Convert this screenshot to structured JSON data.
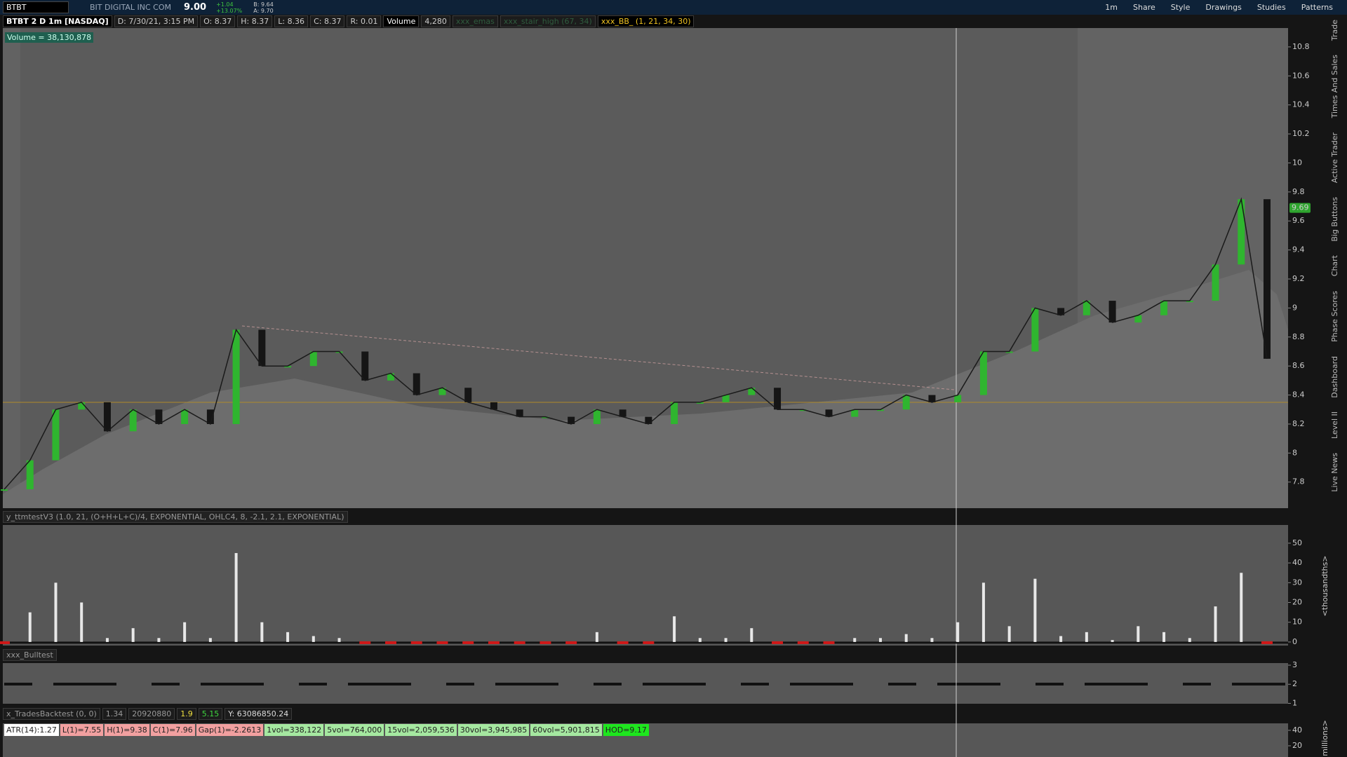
{
  "toolbar": {
    "symbol": "BTBT",
    "description": "BIT DIGITAL INC COM",
    "last": "9.00",
    "change": "+1.04",
    "change_pct": "+13.07%",
    "bid": "B: 9.64",
    "ask": "A: 9.70",
    "timeframe": "1m",
    "buttons": [
      "Share",
      "Style",
      "Drawings",
      "Studies",
      "Patterns"
    ]
  },
  "header": {
    "title": "BTBT 2 D 1m [NASDAQ]",
    "fields": [
      "D: 7/30/21, 3:15 PM",
      "O: 8.37",
      "H: 8.37",
      "L: 8.36",
      "C: 8.37",
      "R: 0.01"
    ],
    "volume_label": "Volume",
    "volume_value": "4,280",
    "studies": [
      "xxx_emas",
      "xxx_stair_high (67, 34)",
      "xxx_BB_ (1, 21, 34, 30)"
    ]
  },
  "volume_note": "Volume = 38,130,878",
  "price_panel": {
    "ylim": [
      7.62,
      10.93
    ],
    "yticks": [
      7.8,
      8,
      8.2,
      8.4,
      8.6,
      8.8,
      9,
      9.2,
      9.4,
      9.6,
      9.8,
      10,
      10.2,
      10.4,
      10.6,
      10.8
    ],
    "last_price": 9.69,
    "closes": [
      7.75,
      7.95,
      8.3,
      8.35,
      8.15,
      8.3,
      8.2,
      8.3,
      8.2,
      8.85,
      8.6,
      8.6,
      8.7,
      8.7,
      8.5,
      8.55,
      8.4,
      8.45,
      8.35,
      8.3,
      8.25,
      8.25,
      8.2,
      8.3,
      8.25,
      8.2,
      8.35,
      8.35,
      8.4,
      8.45,
      8.3,
      8.3,
      8.25,
      8.3,
      8.3,
      8.4,
      8.35,
      8.4,
      8.7,
      8.7,
      9.0,
      8.95,
      9.05,
      8.9,
      8.95,
      9.05,
      9.05,
      9.3,
      9.75,
      8.65
    ]
  },
  "osc_panel": {
    "label": "y_ttmtestV3 (1.0, 21, (O+H+L+C)/4, EXPONENTIAL, OHLC4, 8, -2.1, 2.1, EXPONENTIAL)",
    "unit_label": "<thousandths>",
    "ylim": [
      -1.8,
      59.2
    ],
    "yticks": [
      0,
      10,
      20,
      30,
      40,
      50
    ],
    "values": [
      0,
      15,
      30,
      20,
      2,
      7,
      2,
      10,
      2,
      45,
      10,
      5,
      3,
      2,
      0,
      0,
      0,
      0,
      0,
      0,
      0,
      0,
      0,
      5,
      0,
      0,
      13,
      2,
      2,
      7,
      0,
      0,
      0,
      2,
      2,
      4,
      2,
      10,
      30,
      8,
      32,
      3,
      5,
      1,
      8,
      5,
      2,
      18,
      35,
      0
    ]
  },
  "bull_panel": {
    "label": "xxx_Bulltest",
    "ylim": [
      0.98,
      3.11
    ],
    "yticks": [
      1,
      2,
      3
    ]
  },
  "backtest": {
    "label": "x_TradesBacktest (0, 0)",
    "fields": [
      "1.34",
      "20920880",
      "1.9",
      "5.15",
      "Y: 63086850.24"
    ],
    "unit_label": "millions>",
    "ylim": [
      5.5,
      49
    ],
    "yticks": [
      20,
      40
    ],
    "stats": [
      "ATR(14):1.27",
      "L(1)=7.55",
      "H(1)=9.38",
      "C(1)=7.96",
      "Gap(1)=-2.2613",
      "1vol=338,122",
      "5vol=764,000",
      "15vol=2,059,536",
      "30vol=3,945,985",
      "60vol=5,901,815",
      "HOD=9.17"
    ]
  },
  "sidebar_tabs": [
    "Trade",
    "Times And Sales",
    "Active Trader",
    "Big Buttons",
    "Chart",
    "Phase Scores",
    "Dashboard",
    "Level II",
    "Live News"
  ]
}
